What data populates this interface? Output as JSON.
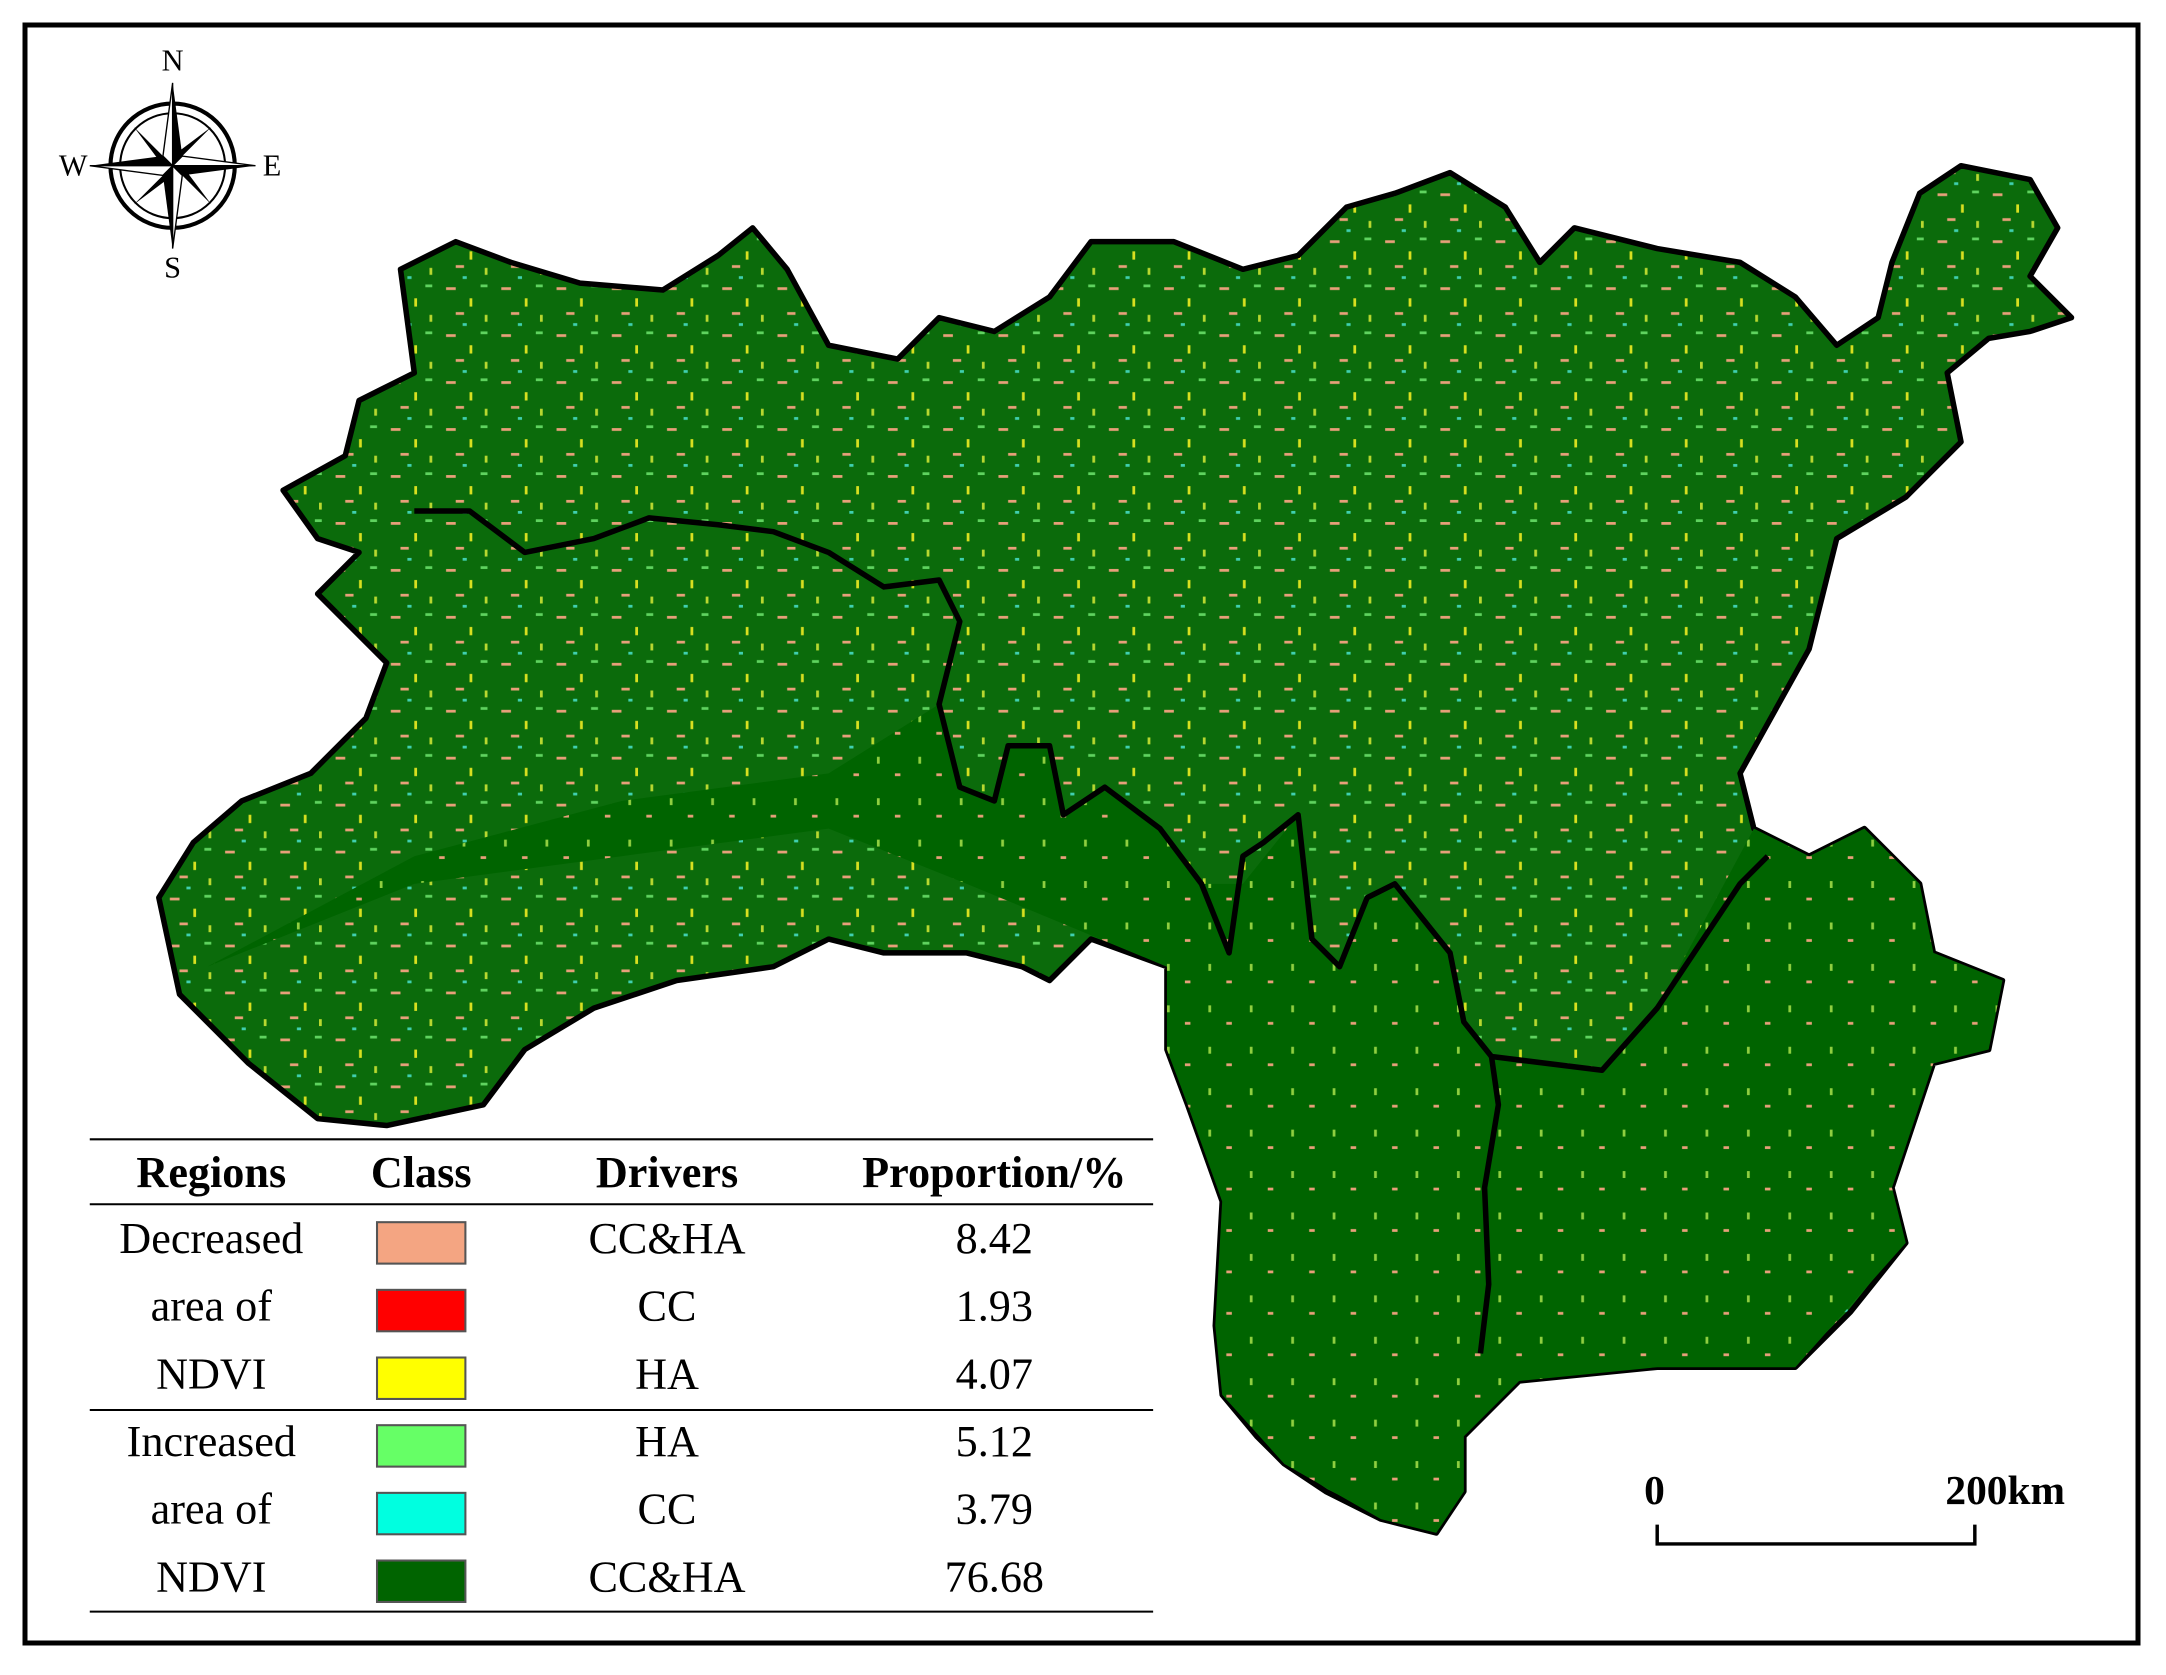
{
  "compass": {
    "north": "N",
    "east": "E",
    "south": "S",
    "west": "W"
  },
  "table": {
    "headers": [
      "Regions",
      "Class",
      "Drivers",
      "Proportion/%"
    ],
    "groups": [
      {
        "region_lines": [
          "Decreased",
          "area of",
          "NDVI"
        ],
        "rows": [
          {
            "color": "#f4a582",
            "driver": "CC&HA",
            "proportion": 8.42
          },
          {
            "color": "#ff0000",
            "driver": "CC",
            "proportion": 1.93
          },
          {
            "color": "#ffff00",
            "driver": "HA",
            "proportion": 4.07
          }
        ]
      },
      {
        "region_lines": [
          "Increased",
          "area of",
          "NDVI"
        ],
        "rows": [
          {
            "color": "#66ff66",
            "driver": "HA",
            "proportion": 5.12
          },
          {
            "color": "#00ffe0",
            "driver": "CC",
            "proportion": 3.79
          },
          {
            "color": "#006400",
            "driver": "CC&HA",
            "proportion": 76.68
          }
        ]
      }
    ]
  },
  "scale_bar": {
    "start_label": "0",
    "end_label": "200km"
  }
}
